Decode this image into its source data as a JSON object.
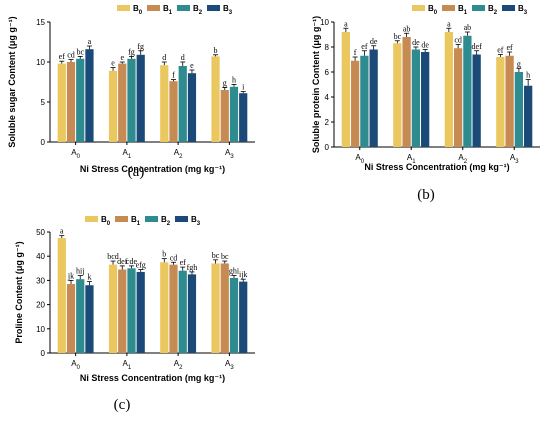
{
  "colors": {
    "B0": "#ebc75f",
    "B1": "#c58b52",
    "B2": "#2e8b90",
    "B3": "#1c4a78"
  },
  "legend": [
    {
      "base": "B",
      "sub": "0",
      "key": "B0"
    },
    {
      "base": "B",
      "sub": "1",
      "key": "B1"
    },
    {
      "base": "B",
      "sub": "2",
      "key": "B2"
    },
    {
      "base": "B",
      "sub": "3",
      "key": "B3"
    }
  ],
  "categories": [
    {
      "base": "A",
      "sub": "0"
    },
    {
      "base": "A",
      "sub": "1"
    },
    {
      "base": "A",
      "sub": "2"
    },
    {
      "base": "A",
      "sub": "3"
    }
  ],
  "chart_data": [
    {
      "type": "bar",
      "panel_label": "(a)",
      "ylabel": "Soluble sugar Content (μg g⁻¹)",
      "xlabel": "Ni Stress Concentration (mg kg⁻¹)",
      "ylim": [
        0,
        15
      ],
      "yticks": [
        0,
        5,
        10,
        15
      ],
      "series": [
        {
          "key": "B0",
          "values": [
            9.8,
            8.9,
            9.6,
            10.7
          ],
          "errors": [
            0.3,
            0.4,
            0.4,
            0.2
          ],
          "letters": [
            "ef",
            "e",
            "d",
            "b"
          ]
        },
        {
          "key": "B1",
          "values": [
            10.0,
            9.8,
            7.6,
            6.5
          ],
          "errors": [
            0.3,
            0.2,
            0.2,
            0.3
          ],
          "letters": [
            "cd",
            "e",
            "f",
            "g"
          ]
        },
        {
          "key": "B2",
          "values": [
            10.4,
            10.4,
            9.5,
            6.9
          ],
          "errors": [
            0.3,
            0.3,
            0.5,
            0.3
          ],
          "letters": [
            "bc",
            "fg",
            "d",
            "h"
          ]
        },
        {
          "key": "B3",
          "values": [
            11.6,
            10.9,
            8.6,
            6.1
          ],
          "errors": [
            0.4,
            0.5,
            0.4,
            0.2
          ],
          "letters": [
            "a",
            "fg",
            "e",
            "i"
          ]
        }
      ]
    },
    {
      "type": "bar",
      "panel_label": "(b)",
      "ylabel": "Soluble protein Content (μg g⁻¹)",
      "xlabel": "Ni Stress Concentration (mg kg⁻¹)",
      "ylim": [
        0,
        10
      ],
      "yticks": [
        0,
        2,
        4,
        6,
        8,
        10
      ],
      "series": [
        {
          "key": "B0",
          "values": [
            9.2,
            8.3,
            9.2,
            7.2
          ],
          "errors": [
            0.3,
            0.2,
            0.3,
            0.2
          ],
          "letters": [
            "a",
            "bc",
            "a",
            "ef"
          ]
        },
        {
          "key": "B1",
          "values": [
            6.9,
            8.8,
            7.9,
            7.3
          ],
          "errors": [
            0.3,
            0.3,
            0.3,
            0.3
          ],
          "letters": [
            "f",
            "ab",
            "cd",
            "ef"
          ]
        },
        {
          "key": "B2",
          "values": [
            7.3,
            7.8,
            8.9,
            6.0
          ],
          "errors": [
            0.4,
            0.2,
            0.3,
            0.3
          ],
          "letters": [
            "ef",
            "de",
            "ab",
            "g"
          ]
        },
        {
          "key": "B3",
          "values": [
            7.8,
            7.6,
            7.4,
            4.9
          ],
          "errors": [
            0.3,
            0.2,
            0.3,
            0.5
          ],
          "letters": [
            "de",
            "de",
            "def",
            "h"
          ]
        }
      ]
    },
    {
      "type": "bar",
      "panel_label": "(c)",
      "ylabel": "Proline Content (μg g⁻¹)",
      "xlabel": "Ni Stress Concentration (mg kg⁻¹)",
      "ylim": [
        0,
        50
      ],
      "yticks": [
        0,
        10,
        20,
        30,
        40,
        50
      ],
      "series": [
        {
          "key": "B0",
          "values": [
            47.5,
            36.5,
            37.5,
            37.0
          ],
          "errors": [
            1.0,
            1.5,
            1.5,
            1.5
          ],
          "letters": [
            "a",
            "bcd",
            "b",
            "bc"
          ]
        },
        {
          "key": "B1",
          "values": [
            28.5,
            34.5,
            36.5,
            37.0
          ],
          "errors": [
            1.5,
            1.5,
            1.0,
            1.0
          ],
          "letters": [
            "jk",
            "def",
            "cd",
            "bc"
          ]
        },
        {
          "key": "B2",
          "values": [
            30.5,
            35.0,
            34.0,
            31.0
          ],
          "errors": [
            1.5,
            1.0,
            1.5,
            1.0
          ],
          "letters": [
            "hij",
            "cde",
            "ef",
            "ghi"
          ]
        },
        {
          "key": "B3",
          "values": [
            28.0,
            33.5,
            32.5,
            29.5
          ],
          "errors": [
            1.5,
            1.0,
            1.0,
            1.0
          ],
          "letters": [
            "k",
            "efg",
            "fgh",
            "ijk"
          ]
        }
      ]
    }
  ]
}
